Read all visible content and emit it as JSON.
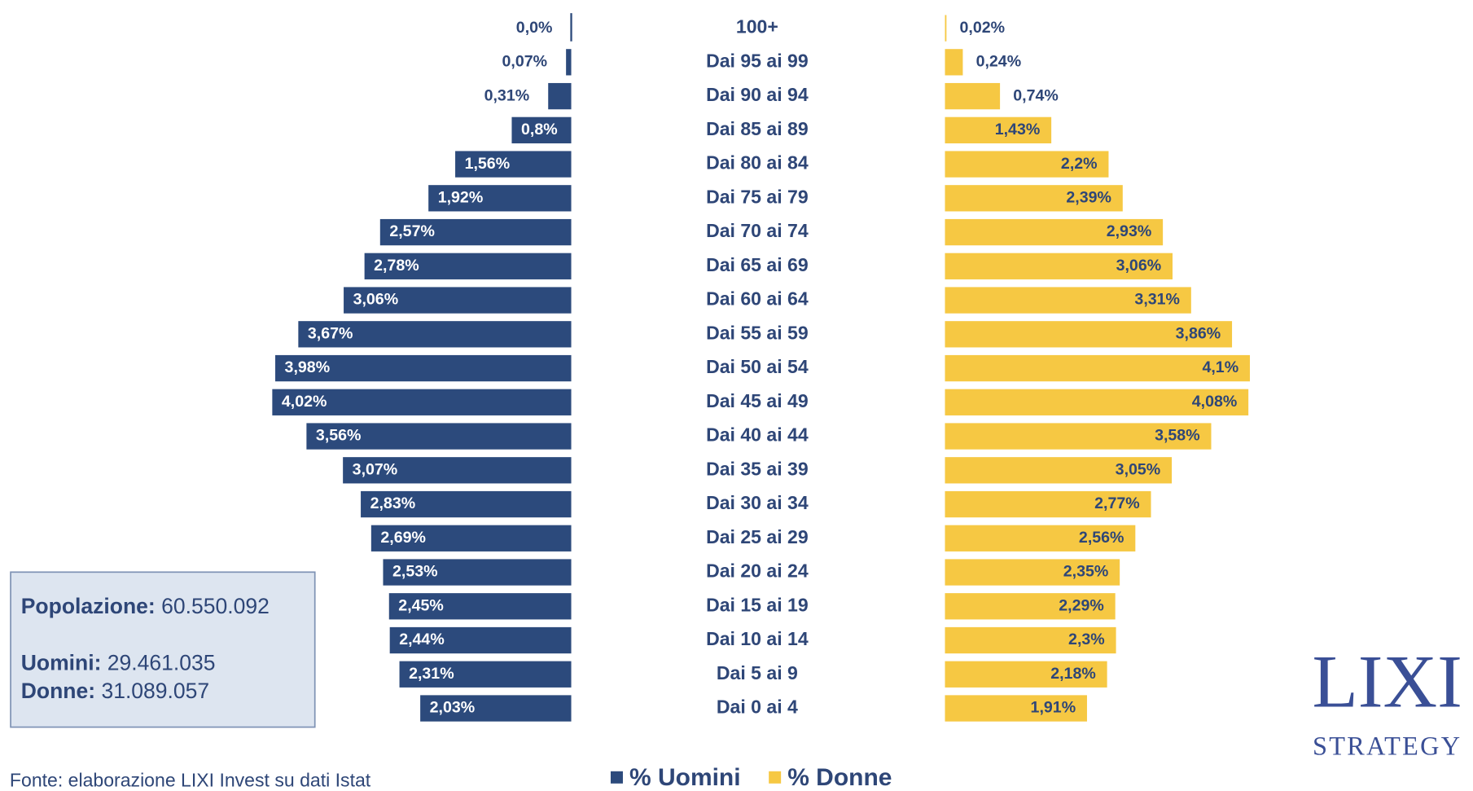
{
  "chart_data": {
    "type": "pyramid",
    "categories": [
      "100+",
      "Dai 95 ai 99",
      "Dai 90 ai 94",
      "Dai 85 ai 89",
      "Dai 80 ai 84",
      "Dai 75 ai 79",
      "Dai 70 ai 74",
      "Dai 65 ai 69",
      "Dai 60 ai 64",
      "Dai 55 ai 59",
      "Dai 50 ai 54",
      "Dai 45 ai 49",
      "Dai 40 ai 44",
      "Dai 35 ai 39",
      "Dai 30 ai 34",
      "Dai 25 ai 29",
      "Dai 20 ai 24",
      "Dai 15 ai 19",
      "Dai 10 ai 14",
      "Dai 5 ai 9",
      "Dai 0 ai 4"
    ],
    "series": [
      {
        "name": "% Uomini",
        "color": "#2c4a7c",
        "values": [
          0.0,
          0.07,
          0.31,
          0.8,
          1.56,
          1.92,
          2.57,
          2.78,
          3.06,
          3.67,
          3.98,
          4.02,
          3.56,
          3.07,
          2.83,
          2.69,
          2.53,
          2.45,
          2.44,
          2.31,
          2.03
        ],
        "value_labels": [
          "0,0%",
          "0,07%",
          "0,31%",
          "0,8%",
          "1,56%",
          "1,92%",
          "2,57%",
          "2,78%",
          "3,06%",
          "3,67%",
          "3,98%",
          "4,02%",
          "3,56%",
          "3,07%",
          "2,83%",
          "2,69%",
          "2,53%",
          "2,45%",
          "2,44%",
          "2,31%",
          "2,03%"
        ]
      },
      {
        "name": "% Donne",
        "color": "#f6c843",
        "values": [
          0.02,
          0.24,
          0.74,
          1.43,
          2.2,
          2.39,
          2.93,
          3.06,
          3.31,
          3.86,
          4.1,
          4.08,
          3.58,
          3.05,
          2.77,
          2.56,
          2.35,
          2.29,
          2.3,
          2.18,
          1.91
        ],
        "value_labels": [
          "0,02%",
          "0,24%",
          "0,74%",
          "1,43%",
          "2,2%",
          "2,39%",
          "2,93%",
          "3,06%",
          "3,31%",
          "3,86%",
          "4,1%",
          "4,08%",
          "3,58%",
          "3,05%",
          "2,77%",
          "2,56%",
          "2,35%",
          "2,29%",
          "2,3%",
          "2,18%",
          "1,91%"
        ]
      }
    ],
    "source": "Fonte: elaborazione LIXI Invest su dati Istat"
  },
  "info_box": {
    "items": [
      {
        "label": "Popolazione:",
        "value": "60.550.092"
      },
      {
        "label": "Uomini:",
        "value": "29.461.035"
      },
      {
        "label": "Donne:",
        "value": "31.089.057"
      }
    ]
  },
  "logo": {
    "line1": "LIXI",
    "line2": "STRATEGY"
  }
}
